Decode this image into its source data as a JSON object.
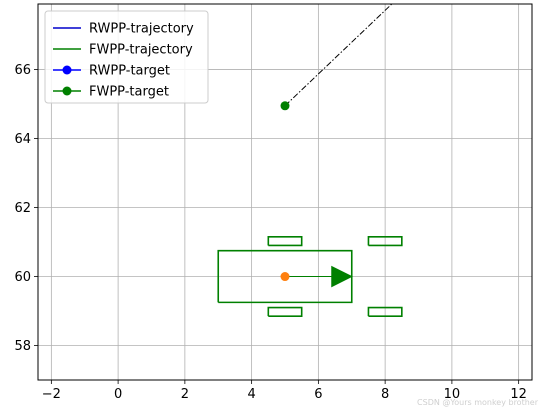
{
  "chart_data": {
    "type": "line",
    "title": "",
    "xlabel": "",
    "ylabel": "",
    "xlim": [
      -2.4,
      12.4
    ],
    "ylim": [
      57.0,
      67.9
    ],
    "x_ticks": [
      "−2",
      "0",
      "2",
      "4",
      "6",
      "8",
      "10",
      "12"
    ],
    "x_tick_values": [
      -2,
      0,
      2,
      4,
      6,
      8,
      10,
      12
    ],
    "y_ticks": [
      "58",
      "60",
      "62",
      "64",
      "66"
    ],
    "y_tick_values": [
      58,
      60,
      62,
      64,
      66
    ],
    "grid": true,
    "legend_position": "upper-left",
    "legend": [
      {
        "label": "RWPP-trajectory",
        "color": "#0000cc",
        "marker": "none"
      },
      {
        "label": "FWPP-trajectory",
        "color": "#008000",
        "marker": "none"
      },
      {
        "label": "RWPP-target",
        "color": "#0000ff",
        "marker": "circle"
      },
      {
        "label": "FWPP-target",
        "color": "#008000",
        "marker": "circle"
      }
    ],
    "target_point": {
      "x": 5.0,
      "y": 64.95,
      "color": "#008000"
    },
    "current_position": {
      "x": 5.0,
      "y": 60.0,
      "color": "#ff7f0e"
    },
    "lookahead_line": {
      "x": [
        5.0,
        8.2
      ],
      "y": [
        64.95,
        67.9
      ],
      "style": "dash-dot",
      "color": "#000000"
    },
    "vehicle_body": {
      "x": [
        3.0,
        7.0,
        7.0,
        3.0,
        3.0
      ],
      "y": [
        59.25,
        59.25,
        60.75,
        60.75,
        59.25
      ],
      "color": "#008000"
    },
    "wheels": [
      {
        "name": "rear-left",
        "x": [
          4.5,
          5.5,
          5.5,
          4.5,
          4.5
        ],
        "y": [
          60.9,
          60.9,
          61.15,
          61.15,
          60.9
        ]
      },
      {
        "name": "rear-right",
        "x": [
          4.5,
          5.5,
          5.5,
          4.5,
          4.5
        ],
        "y": [
          58.85,
          58.85,
          59.1,
          59.1,
          58.85
        ]
      },
      {
        "name": "front-left",
        "x": [
          7.5,
          8.5,
          8.5,
          7.5,
          7.5
        ],
        "y": [
          60.9,
          60.9,
          61.15,
          61.15,
          60.9
        ]
      },
      {
        "name": "front-right",
        "x": [
          7.5,
          8.5,
          8.5,
          7.5,
          7.5
        ],
        "y": [
          58.85,
          58.85,
          59.1,
          59.1,
          58.85
        ]
      }
    ],
    "heading_arrow": {
      "x_start": 5.0,
      "y_start": 60.0,
      "x_end": 7.0,
      "y_end": 60.0,
      "color": "#008000"
    }
  },
  "watermark": {
    "text": "CSDN @Yours monkey brother"
  }
}
